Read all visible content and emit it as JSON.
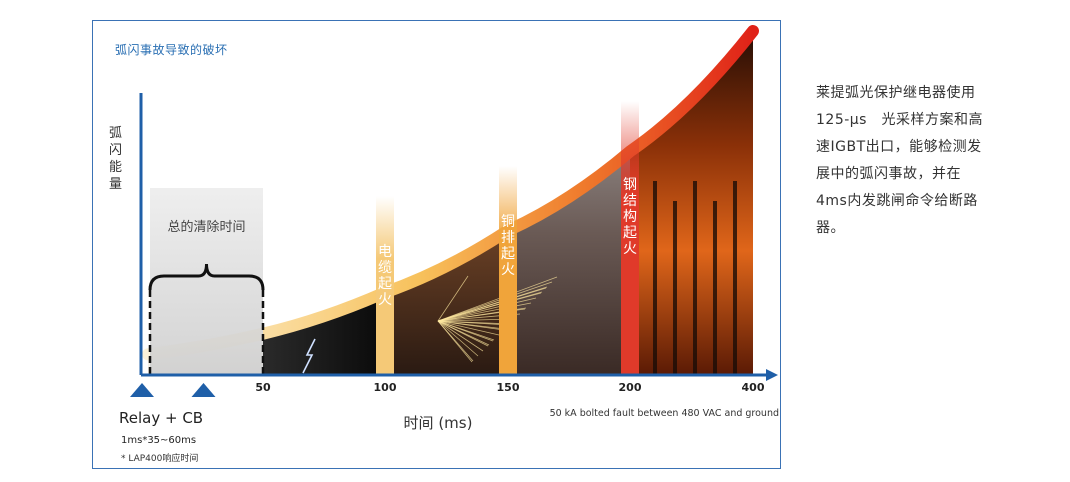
{
  "chart_data": {
    "type": "area",
    "title": "弧闪事故导致的破坏",
    "ylabel": "弧闪能量",
    "xlabel": "时间 (ms)",
    "x_ticks": [
      "50",
      "100",
      "150",
      "200",
      "400"
    ],
    "curve": {
      "x": [
        0,
        50,
        100,
        150,
        200,
        400
      ],
      "y": [
        0.06,
        0.12,
        0.24,
        0.42,
        0.65,
        1.0
      ],
      "unit": "relative"
    },
    "clearing_time": {
      "label": "总的清除时间",
      "x_start": 0,
      "x_end": 50
    },
    "events": [
      {
        "label": "电缆起火",
        "x": 100,
        "color": "#f5c977"
      },
      {
        "label": "铜排起火",
        "x": 150,
        "color": "#f0a43a"
      },
      {
        "label": "钢结构起火",
        "x": 200,
        "color": "#e03a2a"
      }
    ],
    "markers": [
      {
        "label": "Relay + CB",
        "x": 0
      },
      {
        "label": "",
        "x": 25
      }
    ],
    "relay_label": "Relay + CB",
    "relay_timing": "1ms*35~60ms",
    "relay_note": "* LAP400响应时间",
    "fault_note": "50 kA bolted fault between 480 VAC and ground",
    "accent_color": "#1f5fa8",
    "curve_colors": [
      "#fbe6b0",
      "#f7b64a",
      "#e7442a",
      "#e02218"
    ]
  },
  "side_description": {
    "lines": [
      "莱提弧光保护继电器使用",
      "125-μs　光采样方案和高",
      "速IGBT出口，能够检测发",
      "展中的弧闪事故，并在",
      "4ms内发跳闸命令给断路",
      "器。"
    ]
  }
}
